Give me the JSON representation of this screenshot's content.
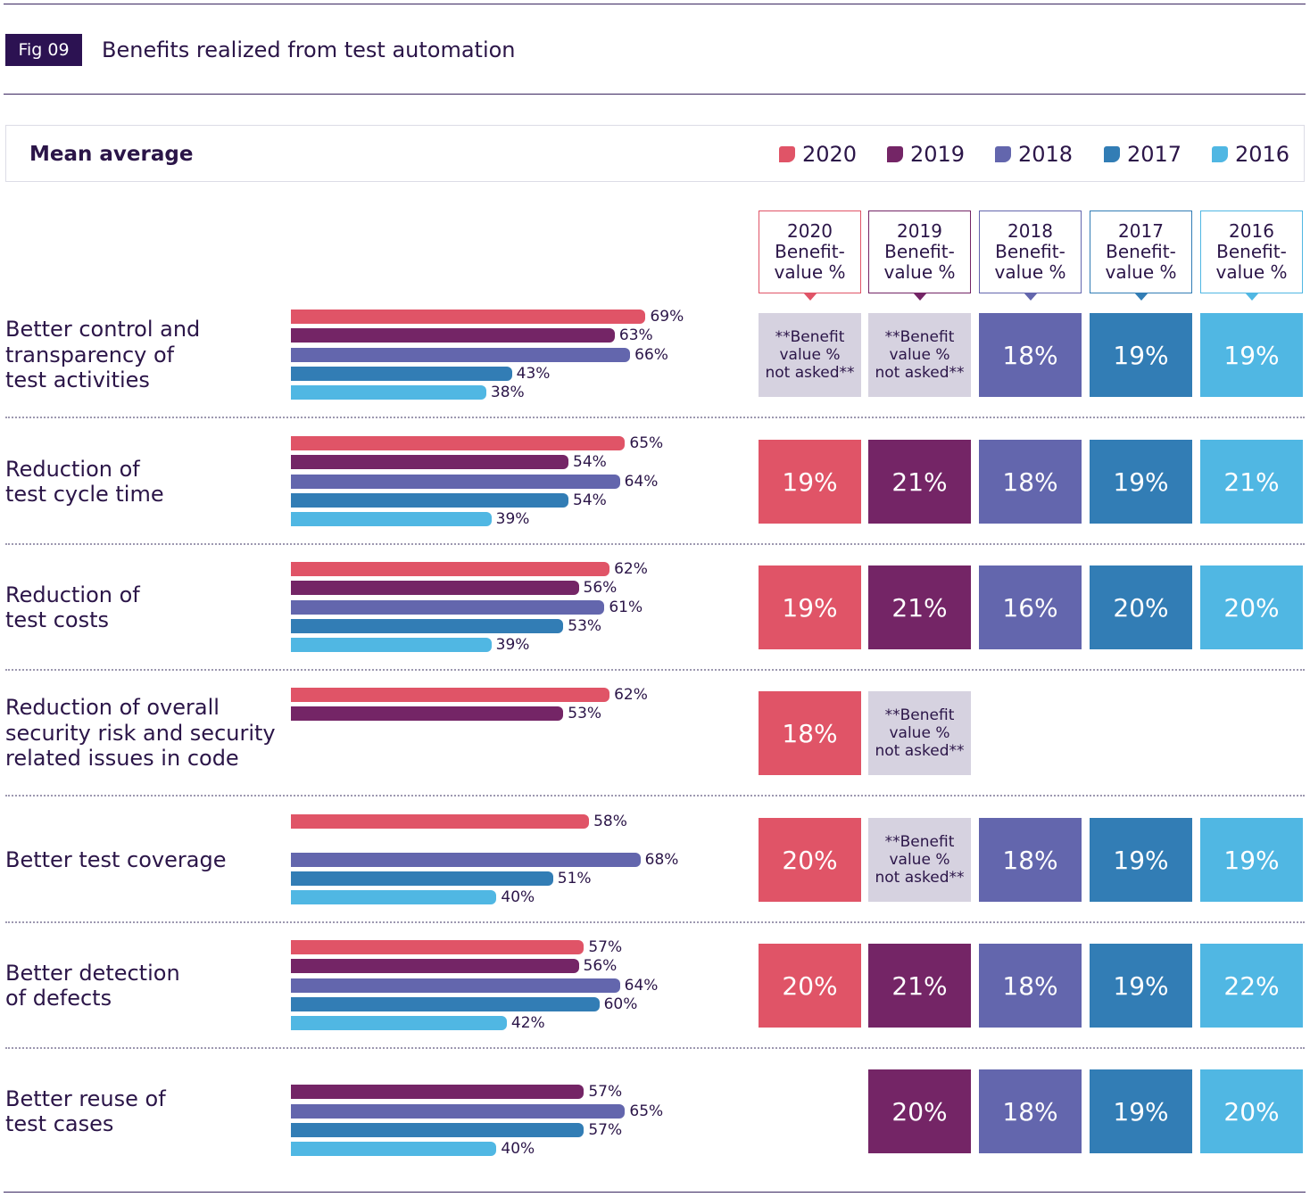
{
  "figure": {
    "tag": "Fig 09",
    "title": "Benefits realized from test automation"
  },
  "legend": {
    "label": "Mean average",
    "items": [
      {
        "year": "2020",
        "color": "#e05467"
      },
      {
        "year": "2019",
        "color": "#742566"
      },
      {
        "year": "2018",
        "color": "#6366ad"
      },
      {
        "year": "2017",
        "color": "#327db5"
      },
      {
        "year": "2016",
        "color": "#50b7e3"
      }
    ]
  },
  "benefit_headers": [
    {
      "year": "2020",
      "text": "2020\nBenefit-\nvalue %"
    },
    {
      "year": "2019",
      "text": "2019\nBenefit-\nvalue %"
    },
    {
      "year": "2018",
      "text": "2018\nBenefit-\nvalue %"
    },
    {
      "year": "2017",
      "text": "2017\nBenefit-\nvalue %"
    },
    {
      "year": "2016",
      "text": "2016\nBenefit-\nvalue %"
    }
  ],
  "not_asked_text": "**Benefit\nvalue %\nnot asked**",
  "chart_data": {
    "type": "bar",
    "orientation": "horizontal",
    "title": "Benefits realized from test automation",
    "subtitle": "Mean average",
    "series_names": [
      "2020",
      "2019",
      "2018",
      "2017",
      "2016"
    ],
    "unit": "%",
    "xlim": [
      0,
      100
    ],
    "categories": [
      {
        "label": "Better control and\ntransparency of\ntest activities",
        "values": {
          "2020": 69,
          "2019": 63,
          "2018": 66,
          "2017": 43,
          "2016": 38
        },
        "benefit_value": {
          "2020": "**Benefit\nvalue %\nnot asked**",
          "2019": "**Benefit\nvalue %\nnot asked**",
          "2018": "18%",
          "2017": "19%",
          "2016": "19%"
        }
      },
      {
        "label": "Reduction of\ntest cycle time",
        "values": {
          "2020": 65,
          "2019": 54,
          "2018": 64,
          "2017": 54,
          "2016": 39
        },
        "benefit_value": {
          "2020": "19%",
          "2019": "21%",
          "2018": "18%",
          "2017": "19%",
          "2016": "21%"
        }
      },
      {
        "label": "Reduction of\ntest costs",
        "values": {
          "2020": 62,
          "2019": 56,
          "2018": 61,
          "2017": 53,
          "2016": 39
        },
        "benefit_value": {
          "2020": "19%",
          "2019": "21%",
          "2018": "16%",
          "2017": "20%",
          "2016": "20%"
        }
      },
      {
        "label": "Reduction of overall\nsecurity risk and security\nrelated issues in code",
        "values": {
          "2020": 62,
          "2019": 53,
          "2018": null,
          "2017": null,
          "2016": null
        },
        "benefit_value": {
          "2020": "18%",
          "2019": "**Benefit\nvalue %\nnot asked**",
          "2018": null,
          "2017": null,
          "2016": null
        }
      },
      {
        "label": "Better test coverage",
        "values": {
          "2020": 58,
          "2019": null,
          "2018": 68,
          "2017": 51,
          "2016": 40
        },
        "benefit_value": {
          "2020": "20%",
          "2019": "**Benefit\nvalue %\nnot asked**",
          "2018": "18%",
          "2017": "19%",
          "2016": "19%"
        }
      },
      {
        "label": "Better detection\nof defects",
        "values": {
          "2020": 57,
          "2019": 56,
          "2018": 64,
          "2017": 60,
          "2016": 42
        },
        "benefit_value": {
          "2020": "20%",
          "2019": "21%",
          "2018": "18%",
          "2017": "19%",
          "2016": "22%"
        }
      },
      {
        "label": "Better reuse of\ntest cases",
        "values": {
          "2020": null,
          "2019": 57,
          "2018": 65,
          "2017": 57,
          "2016": 40
        },
        "benefit_value": {
          "2020": null,
          "2019": "20%",
          "2018": "18%",
          "2017": "19%",
          "2016": "20%"
        }
      }
    ]
  }
}
